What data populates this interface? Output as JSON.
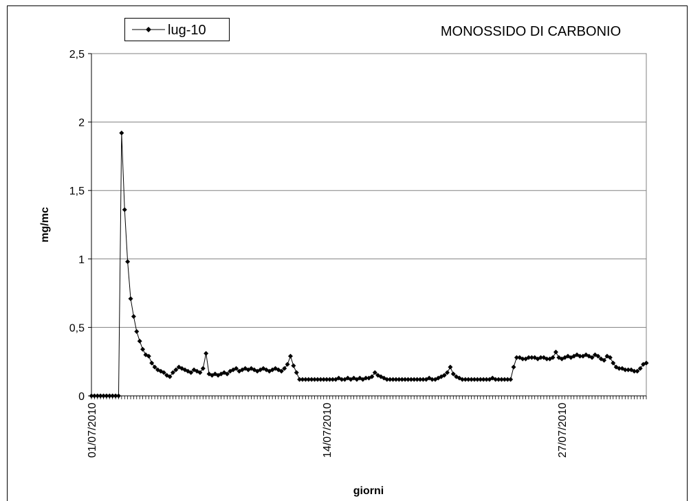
{
  "chart_data": {
    "type": "line",
    "title": "MONOSSIDO DI CARBONIO",
    "xlabel": "giorni",
    "ylabel": "mg/mc",
    "categories": [
      "01/07/2010",
      null,
      null,
      null,
      null,
      null,
      null,
      null,
      null,
      null,
      null,
      null,
      null,
      null,
      null,
      null,
      null,
      null,
      null,
      null,
      null,
      null,
      null,
      null,
      null,
      null,
      null,
      null,
      null,
      null,
      null,
      null,
      null,
      null,
      null,
      null,
      null,
      null,
      null,
      null,
      null,
      null,
      null,
      null,
      null,
      null,
      null,
      null,
      null,
      null,
      null,
      null,
      null,
      null,
      null,
      null,
      null,
      null,
      null,
      null,
      null,
      null,
      null,
      null,
      null,
      null,
      null,
      null,
      null,
      null,
      null,
      null,
      null,
      null,
      null,
      null,
      null,
      null,
      "14/07/2010",
      null,
      null,
      null,
      null,
      null,
      null,
      null,
      null,
      null,
      null,
      null,
      null,
      null,
      null,
      null,
      null,
      null,
      null,
      null,
      null,
      null,
      null,
      null,
      null,
      null,
      null,
      null,
      null,
      null,
      null,
      null,
      null,
      null,
      null,
      null,
      null,
      null,
      null,
      null,
      null,
      null,
      null,
      null,
      null,
      null,
      null,
      null,
      null,
      null,
      null,
      null,
      null,
      null,
      null,
      null,
      null,
      null,
      null,
      null,
      null,
      null,
      null,
      null,
      null,
      null,
      null,
      null,
      null,
      null,
      null,
      null,
      null,
      null,
      null,
      null,
      null,
      null,
      "27/07/2010",
      null,
      null,
      null,
      null,
      null,
      null,
      null,
      null,
      null,
      null,
      null,
      null,
      null,
      null,
      null,
      null,
      null,
      null,
      null,
      null,
      null,
      null,
      null,
      null,
      null,
      null,
      null,
      null
    ],
    "series": [
      {
        "name": "lug-10",
        "color": "#000000",
        "values": [
          0,
          0,
          0,
          0,
          0,
          0,
          0,
          0,
          0,
          0,
          1.92,
          1.36,
          0.98,
          0.71,
          0.58,
          0.47,
          0.4,
          0.34,
          0.3,
          0.29,
          0.24,
          0.21,
          0.19,
          0.18,
          0.17,
          0.15,
          0.14,
          0.17,
          0.19,
          0.21,
          0.2,
          0.19,
          0.18,
          0.17,
          0.19,
          0.18,
          0.17,
          0.2,
          0.31,
          0.16,
          0.15,
          0.16,
          0.15,
          0.16,
          0.17,
          0.16,
          0.18,
          0.19,
          0.2,
          0.18,
          0.19,
          0.2,
          0.19,
          0.2,
          0.19,
          0.18,
          0.19,
          0.2,
          0.19,
          0.18,
          0.19,
          0.2,
          0.19,
          0.18,
          0.2,
          0.23,
          0.29,
          0.22,
          0.17,
          0.12,
          0.12,
          0.12,
          0.12,
          0.12,
          0.12,
          0.12,
          0.12,
          0.12,
          0.12,
          0.12,
          0.12,
          0.12,
          0.13,
          0.12,
          0.12,
          0.13,
          0.12,
          0.13,
          0.12,
          0.13,
          0.12,
          0.13,
          0.13,
          0.14,
          0.17,
          0.15,
          0.14,
          0.13,
          0.12,
          0.12,
          0.12,
          0.12,
          0.12,
          0.12,
          0.12,
          0.12,
          0.12,
          0.12,
          0.12,
          0.12,
          0.12,
          0.12,
          0.13,
          0.12,
          0.12,
          0.13,
          0.14,
          0.15,
          0.17,
          0.21,
          0.16,
          0.14,
          0.13,
          0.12,
          0.12,
          0.12,
          0.12,
          0.12,
          0.12,
          0.12,
          0.12,
          0.12,
          0.12,
          0.13,
          0.12,
          0.12,
          0.12,
          0.12,
          0.12,
          0.12,
          0.21,
          0.28,
          0.28,
          0.27,
          0.27,
          0.28,
          0.28,
          0.28,
          0.27,
          0.28,
          0.28,
          0.27,
          0.27,
          0.28,
          0.32,
          0.28,
          0.27,
          0.28,
          0.29,
          0.28,
          0.29,
          0.3,
          0.29,
          0.29,
          0.3,
          0.29,
          0.28,
          0.3,
          0.29,
          0.27,
          0.26,
          0.29,
          0.28,
          0.24,
          0.21,
          0.2,
          0.2,
          0.19,
          0.19,
          0.19,
          0.18,
          0.18,
          0.2,
          0.23,
          0.24
        ]
      }
    ],
    "ylim": [
      0,
      2.5
    ],
    "yticks": [
      0,
      {
        "value": 0.5,
        "label": "0,5"
      },
      1,
      {
        "value": 1.5,
        "label": "1,5"
      },
      2,
      {
        "value": 2.5,
        "label": "2,5"
      }
    ],
    "grid": true,
    "legend": "top-left"
  }
}
